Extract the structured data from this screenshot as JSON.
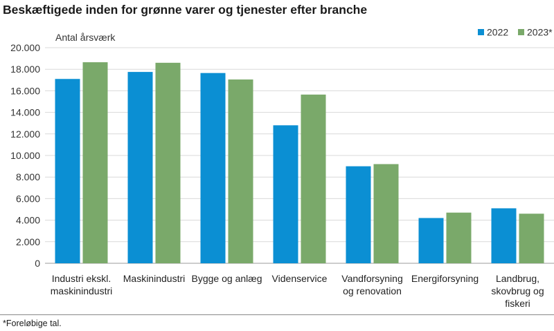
{
  "title": "Beskæftigede inden for grønne varer og tjenester efter branche",
  "footnote": "*Foreløbige tal.",
  "chart_data": {
    "type": "bar",
    "ylabel": "Antal årsværk",
    "xlabel": "",
    "ylim": [
      0,
      20000
    ],
    "yticks": [
      "0",
      "2.000",
      "4.000",
      "6.000",
      "8.000",
      "10.000",
      "12.000",
      "14.000",
      "16.000",
      "18.000",
      "20.000"
    ],
    "grid": true,
    "legend_position": "top-right",
    "categories": [
      [
        "Industri ekskl.",
        "maskinindustri"
      ],
      [
        "Maskinindustri"
      ],
      [
        "Bygge og anlæg"
      ],
      [
        "Videnservice"
      ],
      [
        "Vandforsyning",
        "og renovation"
      ],
      [
        "Energiforsyning"
      ],
      [
        "Landbrug,",
        "skovbrug og",
        "fiskeri"
      ]
    ],
    "series": [
      {
        "name": "2022",
        "color": "#0b8fd3",
        "values": [
          17100,
          17750,
          17650,
          12800,
          9000,
          4200,
          5100
        ]
      },
      {
        "name": "2023*",
        "color": "#7aa96a",
        "values": [
          18650,
          18600,
          17050,
          15650,
          9200,
          4700,
          4600
        ]
      }
    ]
  }
}
